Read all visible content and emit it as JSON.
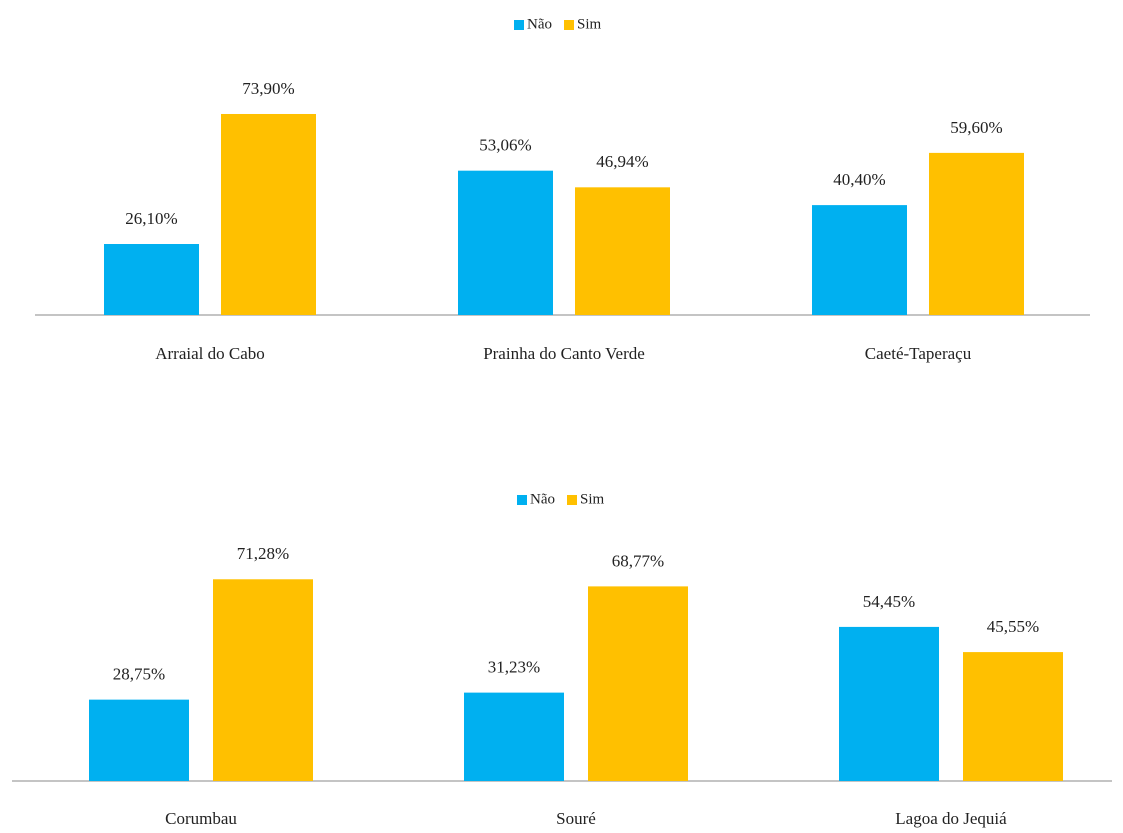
{
  "chart_data": [
    {
      "type": "bar",
      "categories": [
        "Arraial do Cabo",
        "Prainha do Canto Verde",
        "Caeté-Taperaçu"
      ],
      "series": [
        {
          "name": "Não",
          "color": "#00b0f0",
          "values": [
            26.1,
            53.06,
            40.4
          ],
          "value_labels": [
            "26,10%",
            "53,06%",
            "40,40%"
          ]
        },
        {
          "name": "Sim",
          "color": "#ffc000",
          "values": [
            73.9,
            46.94,
            59.6
          ],
          "value_labels": [
            "73,90%",
            "46,94%",
            "59,60%"
          ]
        }
      ]
    },
    {
      "type": "bar",
      "categories": [
        "Corumbau",
        "Souré",
        "Lagoa do Jequiá"
      ],
      "series": [
        {
          "name": "Não",
          "color": "#00b0f0",
          "values": [
            28.75,
            31.23,
            54.45
          ],
          "value_labels": [
            "28,75%",
            "31,23%",
            "54,45%"
          ]
        },
        {
          "name": "Sim",
          "color": "#ffc000",
          "values": [
            71.28,
            68.77,
            45.55
          ],
          "value_labels": [
            "71,28%",
            "68,77%",
            "45,55%"
          ]
        }
      ]
    }
  ]
}
